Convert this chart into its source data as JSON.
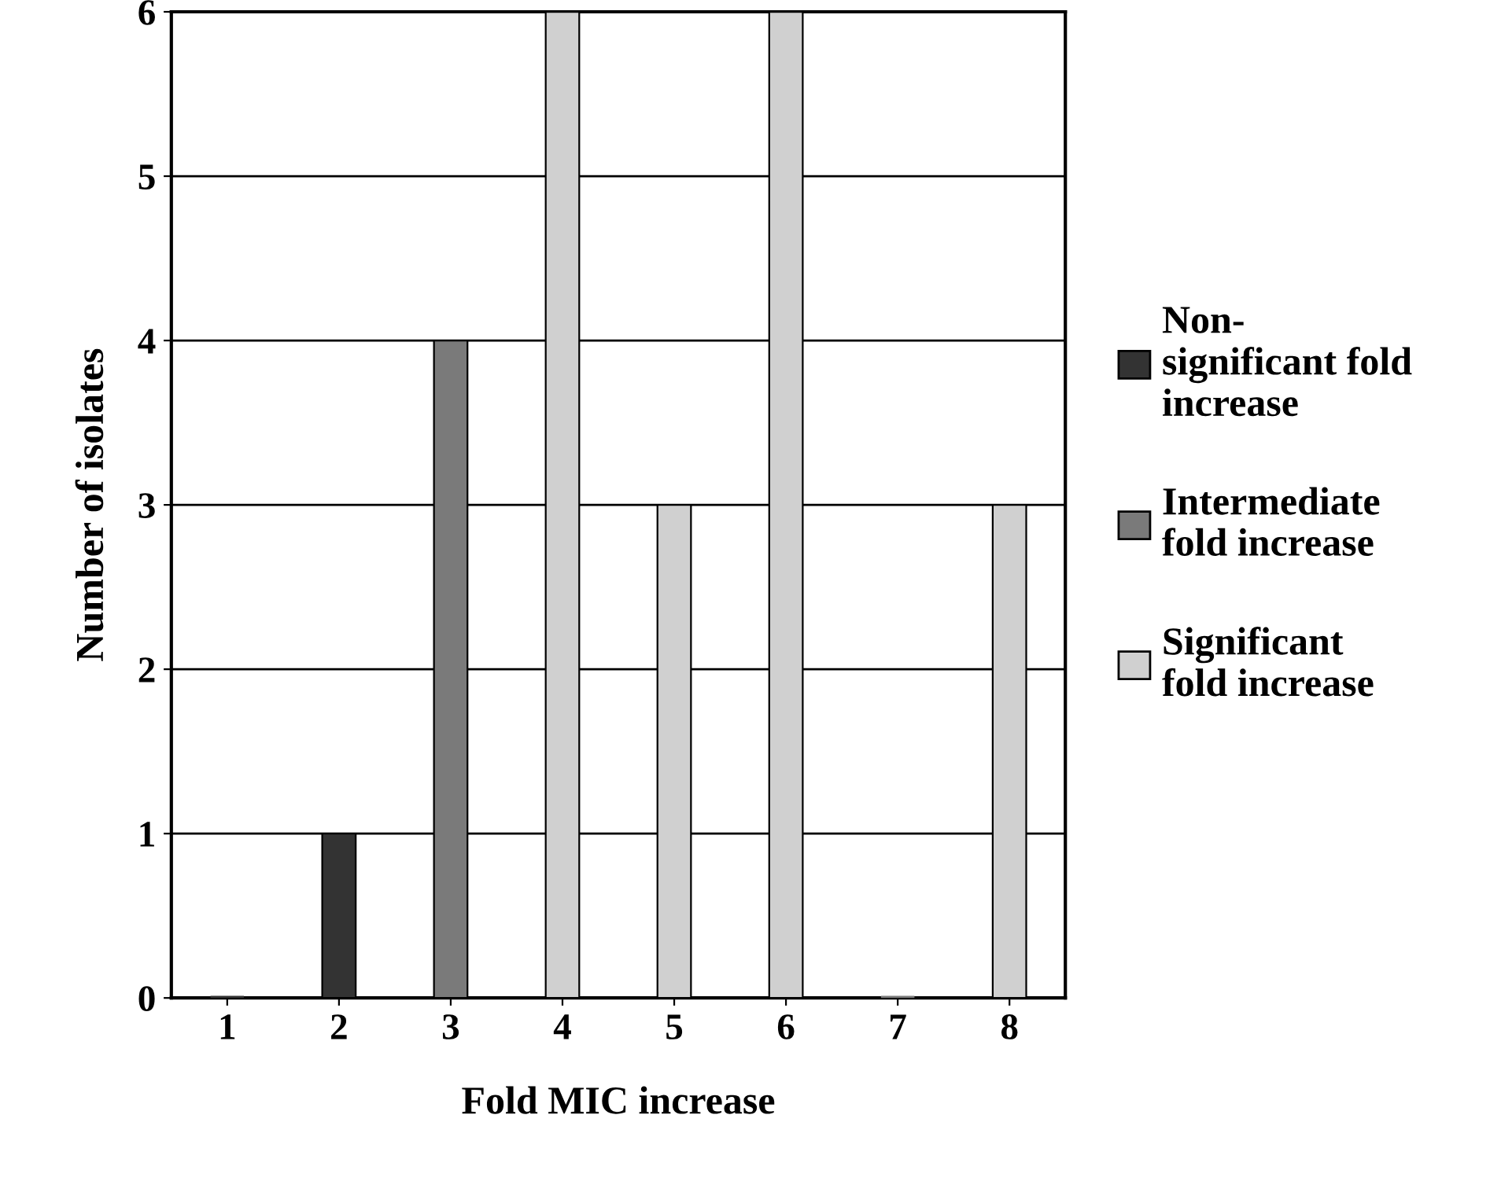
{
  "chart_data": {
    "type": "bar",
    "xlabel": "Fold MIC increase",
    "ylabel": "Number of isolates",
    "categories": [
      "1",
      "2",
      "3",
      "4",
      "5",
      "6",
      "7",
      "8"
    ],
    "series": [
      {
        "name": "Non-\nsignificant fold\nincrease",
        "color": "#333333",
        "values": [
          0,
          1,
          null,
          null,
          null,
          null,
          null,
          null
        ]
      },
      {
        "name": "Intermediate\nfold increase",
        "color": "#7a7a7a",
        "values": [
          null,
          null,
          4,
          null,
          null,
          null,
          0,
          null
        ]
      },
      {
        "name": "Significant\nfold increase",
        "color": "#d0d0d0",
        "values": [
          null,
          null,
          null,
          6,
          3,
          6,
          null,
          3
        ]
      }
    ],
    "ylim": [
      0,
      6
    ],
    "yticks": [
      0,
      1,
      2,
      3,
      4,
      5,
      6
    ],
    "grid": "y",
    "legend": "right"
  }
}
